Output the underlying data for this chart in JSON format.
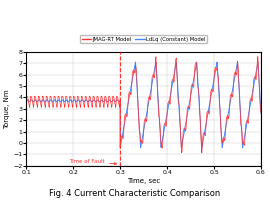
{
  "title": "Fig. 4 Current Characteristic Comparison",
  "xlabel": "Time, sec",
  "ylabel": "Torque, Nm",
  "xlim": [
    0.1,
    0.6
  ],
  "ylim": [
    -2,
    8
  ],
  "yticks": [
    -2,
    -1,
    0,
    1,
    2,
    3,
    4,
    5,
    6,
    7,
    8
  ],
  "xticks": [
    0.1,
    0.2,
    0.3,
    0.4,
    0.5,
    0.6
  ],
  "fault_time": 0.3,
  "fault_label": "Time of Fault",
  "legend_labels": [
    "JMAG-RT Model",
    "LdLq (Constant) Model"
  ],
  "line_color_jmag": "#FF3333",
  "line_color_ldlq": "#4488FF",
  "fault_line_color": "#FF3333",
  "background_color": "#FFFFFF",
  "grid_color": "#CCCCCC",
  "pre_fault_mean": 3.7,
  "pre_fault_ripple": 0.45,
  "pre_fault_freq": 120,
  "post_fault_freq_slow": 23.0,
  "post_fault_peak": 7.1,
  "post_fault_trough": -0.4,
  "post_jmag_ripple": 0.55,
  "post_jmag_freq_fast": 120
}
